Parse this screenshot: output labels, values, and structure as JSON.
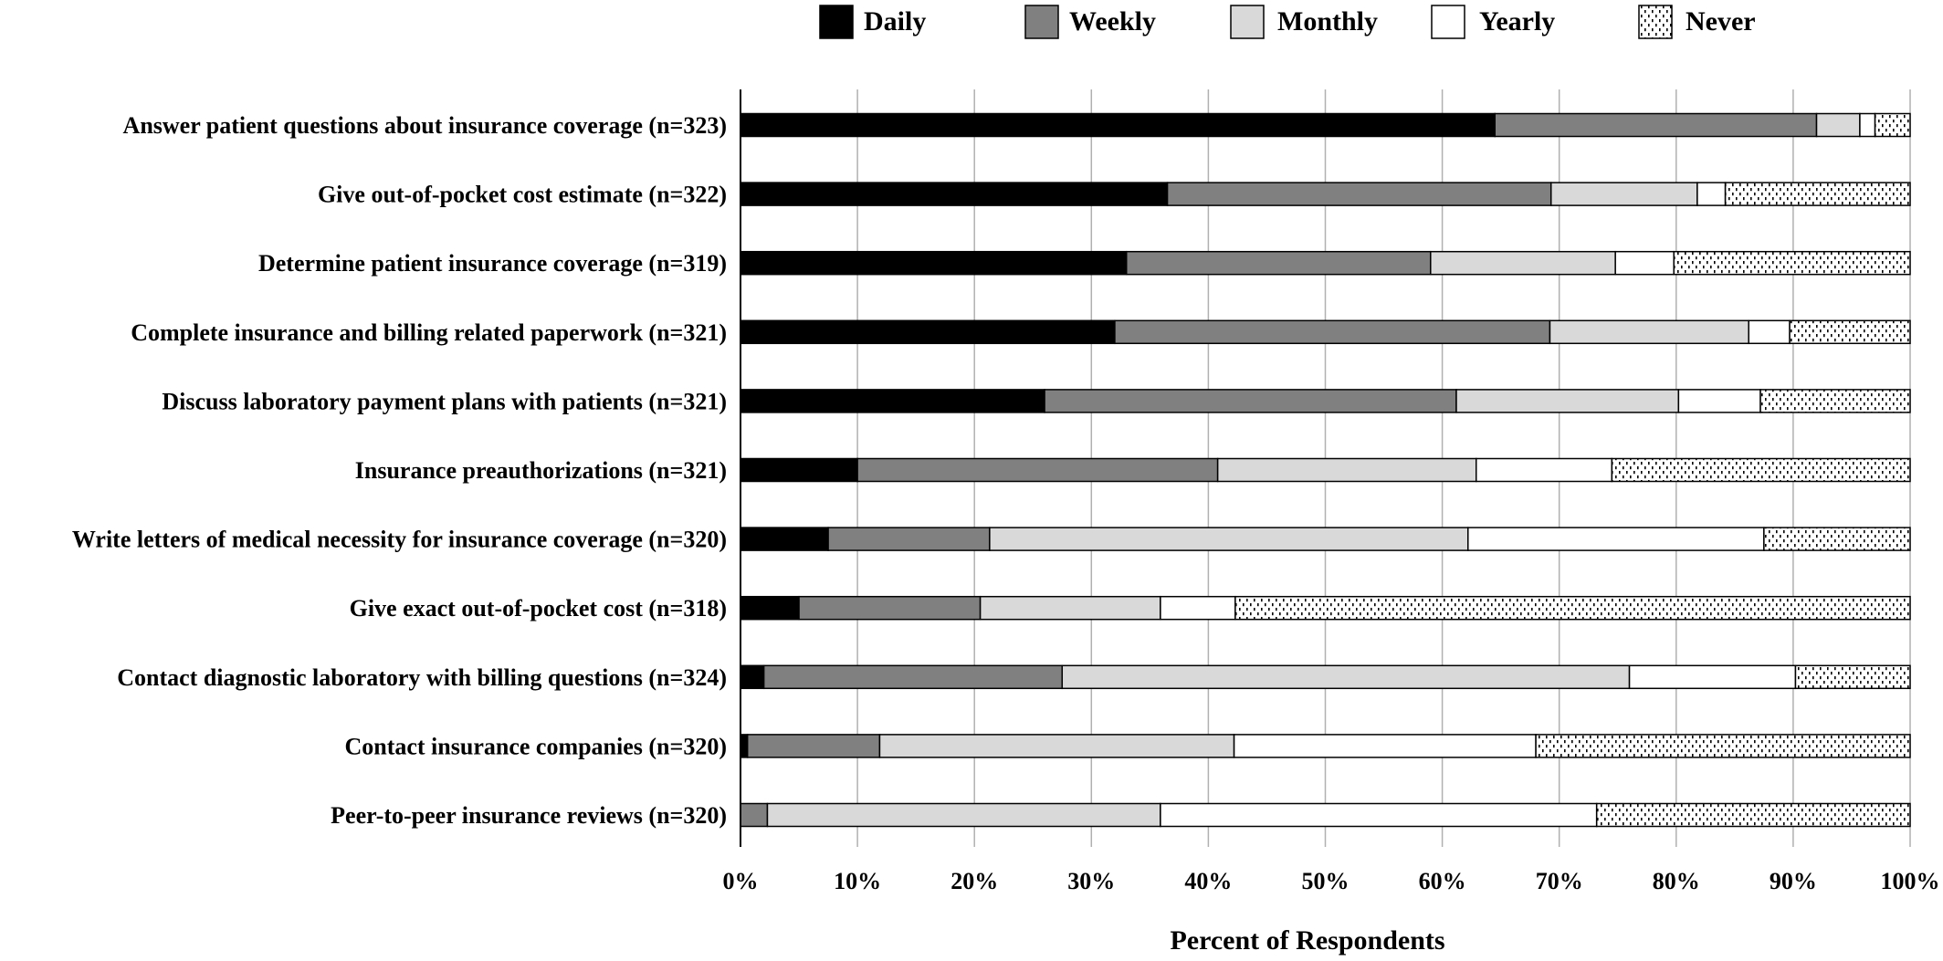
{
  "chart_data": {
    "type": "bar",
    "orientation": "horizontal",
    "stacked": true,
    "normalized_percent": true,
    "title": "",
    "xlabel": "Percent of Respondents",
    "ylabel": "",
    "xlim": [
      0,
      100
    ],
    "x_ticks": [
      "0%",
      "10%",
      "20%",
      "30%",
      "40%",
      "50%",
      "60%",
      "70%",
      "80%",
      "90%",
      "100%"
    ],
    "grid": "vertical",
    "legend_position": "top",
    "categories": [
      "Answer patient questions about insurance coverage (n=323)",
      "Give out-of-pocket cost estimate (n=322)",
      "Determine patient insurance coverage (n=319)",
      "Complete insurance and billing related  paperwork (n=321)",
      "Discuss laboratory payment plans with patients (n=321)",
      "Insurance preauthorizations (n=321)",
      "Write letters of medical necessity for insurance coverage (n=320)",
      "Give exact out-of-pocket cost (n=318)",
      "Contact diagnostic laboratory with billing questions (n=324)",
      "Contact insurance companies (n=320)",
      "Peer-to-peer insurance reviews (n=320)"
    ],
    "series": [
      {
        "name": "Daily",
        "color": "#000000",
        "pattern": "solid",
        "values": [
          64.5,
          36.5,
          33.0,
          32.0,
          26.0,
          10.0,
          7.5,
          5.0,
          2.0,
          0.6,
          0.0
        ]
      },
      {
        "name": "Weekly",
        "color": "#808080",
        "pattern": "solid",
        "values": [
          27.5,
          32.8,
          26.0,
          37.2,
          35.2,
          30.8,
          13.8,
          15.5,
          25.5,
          11.3,
          2.3
        ]
      },
      {
        "name": "Monthly",
        "color": "#d9d9d9",
        "pattern": "solid",
        "values": [
          3.7,
          12.5,
          15.8,
          17.0,
          19.0,
          22.1,
          40.9,
          15.4,
          48.5,
          30.3,
          33.6
        ]
      },
      {
        "name": "Yearly",
        "color": "#ffffff",
        "pattern": "solid",
        "values": [
          1.3,
          2.4,
          5.0,
          3.5,
          7.0,
          11.6,
          25.3,
          6.4,
          14.2,
          25.8,
          37.3
        ]
      },
      {
        "name": "Never",
        "color": "#ffffff",
        "pattern": "dotted",
        "values": [
          3.0,
          15.8,
          20.2,
          10.3,
          12.8,
          25.5,
          12.5,
          57.7,
          9.8,
          32.0,
          26.8
        ]
      }
    ]
  }
}
